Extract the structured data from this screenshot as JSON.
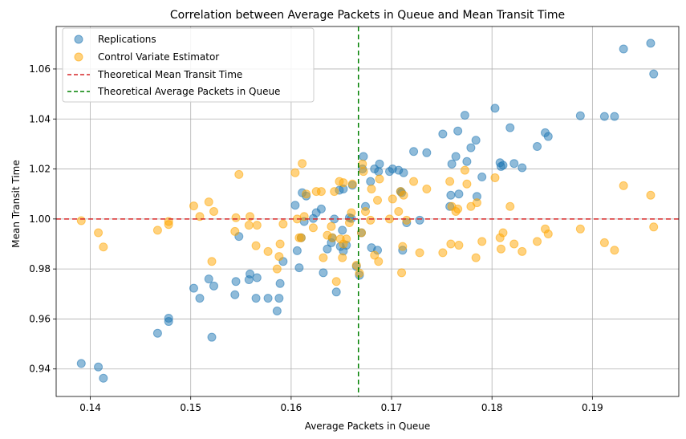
{
  "chart_data": {
    "type": "scatter",
    "title": "Correlation between Average Packets in Queue and Mean Transit Time",
    "xlabel": "Average Packets in Queue",
    "ylabel": "Mean Transit Time",
    "xlim": [
      0.1366,
      0.1986
    ],
    "ylim": [
      0.929,
      1.077
    ],
    "xticks": [
      0.14,
      0.15,
      0.16,
      0.17,
      0.18,
      0.19
    ],
    "xtick_labels": [
      "0.14",
      "0.15",
      "0.16",
      "0.17",
      "0.18",
      "0.19"
    ],
    "yticks": [
      0.94,
      0.96,
      0.98,
      1.0,
      1.02,
      1.04,
      1.06
    ],
    "ytick_labels": [
      "0.94",
      "0.96",
      "0.98",
      "1.00",
      "1.02",
      "1.04",
      "1.06"
    ],
    "grid": true,
    "legend_position": "top-left",
    "reference_lines": [
      {
        "name": "Theoretical Mean Transit Time",
        "orientation": "horizontal",
        "value": 1.0,
        "color": "#d62728",
        "style": "dashed"
      },
      {
        "name": "Theoretical Average Packets in Queue",
        "orientation": "vertical",
        "value": 0.1667,
        "color": "#008000",
        "style": "dashed"
      }
    ],
    "series": [
      {
        "name": "Replications",
        "color": "#1f77b4",
        "points": [
          [
            0.1391,
            0.9422
          ],
          [
            0.1408,
            0.9408
          ],
          [
            0.1413,
            0.9363
          ],
          [
            0.1467,
            0.9543
          ],
          [
            0.1478,
            0.9603
          ],
          [
            0.1478,
            0.959
          ],
          [
            0.1503,
            0.9723
          ],
          [
            0.1509,
            0.9683
          ],
          [
            0.1518,
            0.976
          ],
          [
            0.1521,
            0.9527
          ],
          [
            0.1523,
            0.9732
          ],
          [
            0.1545,
            0.975
          ],
          [
            0.1544,
            0.9697
          ],
          [
            0.1548,
            0.993
          ],
          [
            0.1558,
            0.9757
          ],
          [
            0.1559,
            0.978
          ],
          [
            0.1565,
            0.9683
          ],
          [
            0.1566,
            0.9765
          ],
          [
            0.1577,
            0.9683
          ],
          [
            0.1586,
            0.9632
          ],
          [
            0.1588,
            0.9683
          ],
          [
            0.1589,
            0.9742
          ],
          [
            0.1592,
            0.983
          ],
          [
            0.1604,
            1.0055
          ],
          [
            0.1606,
            0.9873
          ],
          [
            0.1608,
            0.9805
          ],
          [
            0.161,
            0.9925
          ],
          [
            0.1611,
            1.0105
          ],
          [
            0.1613,
            0.999
          ],
          [
            0.1615,
            1.0092
          ],
          [
            0.1622,
            1.0002
          ],
          [
            0.1625,
            1.0025
          ],
          [
            0.163,
            1.004
          ],
          [
            0.1632,
            0.9785
          ],
          [
            0.1636,
            0.988
          ],
          [
            0.164,
            0.9905
          ],
          [
            0.1641,
            0.9925
          ],
          [
            0.1643,
            1.0
          ],
          [
            0.1645,
            0.9708
          ],
          [
            0.1648,
            1.0115
          ],
          [
            0.1649,
            0.989
          ],
          [
            0.1651,
            0.9955
          ],
          [
            0.1652,
            1.012
          ],
          [
            0.1652,
            0.9872
          ],
          [
            0.1655,
            0.9895
          ],
          [
            0.1658,
            1.0005
          ],
          [
            0.166,
            1.0002
          ],
          [
            0.1661,
            1.0135
          ],
          [
            0.1665,
            0.981
          ],
          [
            0.1668,
            0.9775
          ],
          [
            0.167,
            0.9945
          ],
          [
            0.1671,
            1.02
          ],
          [
            0.1672,
            1.025
          ],
          [
            0.1674,
            1.005
          ],
          [
            0.1679,
            1.015
          ],
          [
            0.168,
            0.9885
          ],
          [
            0.1683,
            1.02
          ],
          [
            0.1686,
            0.9875
          ],
          [
            0.1687,
            1.019
          ],
          [
            0.1688,
            1.022
          ],
          [
            0.1698,
            1.019
          ],
          [
            0.1701,
            1.02
          ],
          [
            0.1707,
            1.0195
          ],
          [
            0.1709,
            1.011
          ],
          [
            0.171,
            1.0105
          ],
          [
            0.1711,
            0.9875
          ],
          [
            0.1712,
            1.0185
          ],
          [
            0.1715,
            0.9985
          ],
          [
            0.1722,
            1.027
          ],
          [
            0.1728,
            0.9995
          ],
          [
            0.1735,
            1.0265
          ],
          [
            0.1751,
            1.034
          ],
          [
            0.1758,
            1.005
          ],
          [
            0.1759,
            1.0095
          ],
          [
            0.176,
            1.022
          ],
          [
            0.1764,
            1.025
          ],
          [
            0.1766,
            1.0352
          ],
          [
            0.1767,
            1.01
          ],
          [
            0.1773,
            1.0415
          ],
          [
            0.1775,
            1.023
          ],
          [
            0.1779,
            1.0285
          ],
          [
            0.1784,
            1.0315
          ],
          [
            0.1785,
            1.009
          ],
          [
            0.179,
            1.0168
          ],
          [
            0.1803,
            1.0443
          ],
          [
            0.1808,
            1.0225
          ],
          [
            0.1809,
            1.021
          ],
          [
            0.1811,
            1.0215
          ],
          [
            0.1818,
            1.0365
          ],
          [
            0.1822,
            1.0222
          ],
          [
            0.183,
            1.0205
          ],
          [
            0.1845,
            1.029
          ],
          [
            0.1853,
            1.0345
          ],
          [
            0.1856,
            1.033
          ],
          [
            0.1888,
            1.0413
          ],
          [
            0.1912,
            1.041
          ],
          [
            0.1922,
            1.041
          ],
          [
            0.1931,
            1.068
          ],
          [
            0.1958,
            1.0703
          ],
          [
            0.1961,
            1.058
          ]
        ]
      },
      {
        "name": "Control Variate Estimator",
        "color": "#ffa500",
        "points": [
          [
            0.1391,
            0.9993
          ],
          [
            0.1408,
            0.9945
          ],
          [
            0.1413,
            0.9888
          ],
          [
            0.1467,
            0.9955
          ],
          [
            0.1478,
            0.999
          ],
          [
            0.1478,
            0.9978
          ],
          [
            0.1503,
            1.0052
          ],
          [
            0.1509,
            1.001
          ],
          [
            0.1518,
            1.0068
          ],
          [
            0.1521,
            0.983
          ],
          [
            0.1523,
            1.003
          ],
          [
            0.1545,
            1.0005
          ],
          [
            0.1544,
            0.995
          ],
          [
            0.1548,
            1.0178
          ],
          [
            0.1558,
            0.9975
          ],
          [
            0.1559,
            1.001
          ],
          [
            0.1565,
            0.9893
          ],
          [
            0.1566,
            0.9975
          ],
          [
            0.1577,
            0.987
          ],
          [
            0.1586,
            0.98
          ],
          [
            0.1588,
            0.985
          ],
          [
            0.1589,
            0.99
          ],
          [
            0.1592,
            0.998
          ],
          [
            0.1604,
            1.0185
          ],
          [
            0.1606,
            1.0
          ],
          [
            0.1608,
            0.9925
          ],
          [
            0.161,
            0.9925
          ],
          [
            0.1611,
            1.0222
          ],
          [
            0.1613,
            1.001
          ],
          [
            0.1615,
            1.01
          ],
          [
            0.1622,
            0.9965
          ],
          [
            0.1625,
            1.011
          ],
          [
            0.163,
            1.011
          ],
          [
            0.1632,
            0.9845
          ],
          [
            0.1636,
            0.9935
          ],
          [
            0.164,
            0.997
          ],
          [
            0.1641,
            0.9925
          ],
          [
            0.1643,
            1.011
          ],
          [
            0.1645,
            0.975
          ],
          [
            0.1648,
            1.015
          ],
          [
            0.1649,
            0.992
          ],
          [
            0.1651,
            0.9845
          ],
          [
            0.1652,
            1.0145
          ],
          [
            0.1652,
            0.99
          ],
          [
            0.1655,
            0.992
          ],
          [
            0.1658,
            0.9985
          ],
          [
            0.166,
            1.0025
          ],
          [
            0.1661,
            1.014
          ],
          [
            0.1665,
            0.9815
          ],
          [
            0.1668,
            0.9783
          ],
          [
            0.167,
            0.9945
          ],
          [
            0.1671,
            1.022
          ],
          [
            0.1672,
            1.019
          ],
          [
            0.1674,
            1.003
          ],
          [
            0.1679,
            0.9995
          ],
          [
            0.168,
            1.012
          ],
          [
            0.1683,
            0.9855
          ],
          [
            0.1686,
            1.0075
          ],
          [
            0.1687,
            0.983
          ],
          [
            0.1688,
            1.016
          ],
          [
            0.1698,
            1.0
          ],
          [
            0.1701,
            1.008
          ],
          [
            0.1707,
            1.003
          ],
          [
            0.1709,
            1.011
          ],
          [
            0.171,
            0.9785
          ],
          [
            0.1711,
            0.989
          ],
          [
            0.1712,
            1.0095
          ],
          [
            0.1715,
            0.9995
          ],
          [
            0.1722,
            1.015
          ],
          [
            0.1728,
            0.9865
          ],
          [
            0.1735,
            1.012
          ],
          [
            0.1751,
            0.9865
          ],
          [
            0.1758,
            1.015
          ],
          [
            0.1759,
            0.99
          ],
          [
            0.176,
            1.005
          ],
          [
            0.1764,
            1.003
          ],
          [
            0.1766,
            1.004
          ],
          [
            0.1767,
            0.9895
          ],
          [
            0.1773,
            1.0195
          ],
          [
            0.1775,
            1.014
          ],
          [
            0.1779,
            1.005
          ],
          [
            0.1784,
            0.9845
          ],
          [
            0.1785,
            1.0065
          ],
          [
            0.179,
            0.991
          ],
          [
            0.1803,
            1.0165
          ],
          [
            0.1808,
            0.9925
          ],
          [
            0.1809,
            0.988
          ],
          [
            0.1811,
            0.9945
          ],
          [
            0.1818,
            1.005
          ],
          [
            0.1822,
            0.99
          ],
          [
            0.183,
            0.987
          ],
          [
            0.1845,
            0.991
          ],
          [
            0.1853,
            0.996
          ],
          [
            0.1856,
            0.994
          ],
          [
            0.1888,
            0.996
          ],
          [
            0.1912,
            0.9905
          ],
          [
            0.1922,
            0.9875
          ],
          [
            0.1931,
            1.0133
          ],
          [
            0.1958,
            1.0095
          ],
          [
            0.1961,
            0.9968
          ]
        ]
      }
    ]
  }
}
